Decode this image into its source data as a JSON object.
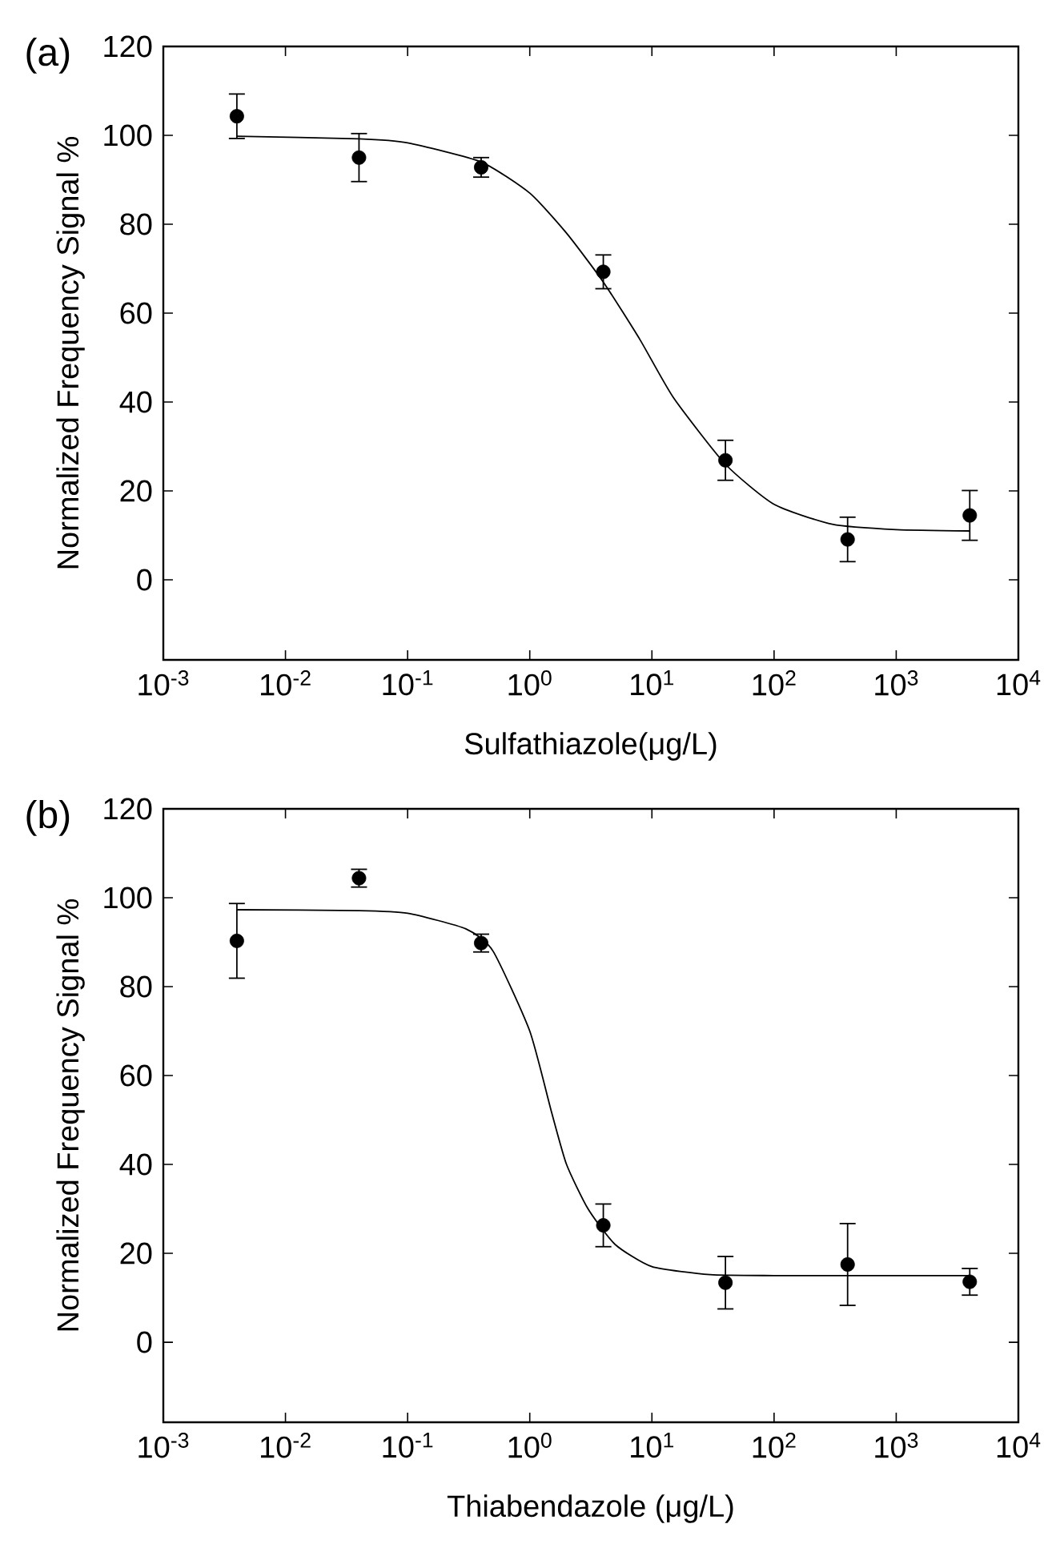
{
  "chart_data": [
    {
      "type": "scatter",
      "xlabel": "Sulfathiazole(μg/L)",
      "ylabel": "Normalized Frequency Signal %",
      "annotations": [
        "(a)"
      ],
      "log": "x",
      "grid": false,
      "marker": "circle",
      "xlim": [
        0.001,
        10000
      ],
      "ylim": [
        -18,
        120
      ],
      "xticks": [
        {
          "value": 0.001,
          "label": "10$^{-3}$"
        },
        {
          "value": 0.01,
          "label": "10$^{-2}$"
        },
        {
          "value": 0.1,
          "label": "10$^{-1}$"
        },
        {
          "value": 1,
          "label": "10$^{0}$"
        },
        {
          "value": 10,
          "label": "10$^{1}$"
        },
        {
          "value": 100,
          "label": "10$^{2}$"
        },
        {
          "value": 1000,
          "label": "10$^{3}$"
        },
        {
          "value": 10000,
          "label": "10$^{4}$"
        }
      ],
      "yticks": [
        0,
        20,
        40,
        60,
        80,
        100,
        120
      ],
      "series": [
        {
          "color": "#000000",
          "x": [
            0.004,
            0.04,
            0.4,
            4,
            40,
            400,
            4000
          ],
          "values": [
            104.3,
            95,
            92.8,
            69.3,
            26.9,
            9.1,
            14.5
          ],
          "errors": [
            5,
            5.4,
            2.2,
            3.8,
            4.5,
            5,
            5.6
          ]
        },
        {
          "type": "line",
          "marker": "none",
          "color": "#000000",
          "x": [
            0.004,
            0.04,
            0.1,
            0.4,
            1,
            2,
            4,
            8,
            15,
            40,
            100,
            300,
            1000,
            4000
          ],
          "values": [
            99.8,
            99.2,
            98.3,
            94,
            87,
            78,
            67,
            54,
            41,
            26,
            17,
            12.5,
            11.3,
            11
          ]
        }
      ]
    },
    {
      "type": "scatter",
      "xlabel": "Thiabendazole (μg/L)",
      "ylabel": "Normalized Frequency Signal %",
      "annotations": [
        "(b)"
      ],
      "log": "x",
      "grid": false,
      "marker": "circle",
      "xlim": [
        0.001,
        10000
      ],
      "ylim": [
        -18,
        120
      ],
      "xticks": [
        {
          "value": 0.001,
          "label": "10$^{-3}$"
        },
        {
          "value": 0.01,
          "label": "10$^{-2}$"
        },
        {
          "value": 0.1,
          "label": "10$^{-1}$"
        },
        {
          "value": 1,
          "label": "10$^{0}$"
        },
        {
          "value": 10,
          "label": "10$^{1}$"
        },
        {
          "value": 100,
          "label": "10$^{2}$"
        },
        {
          "value": 1000,
          "label": "10$^{3}$"
        },
        {
          "value": 10000,
          "label": "10$^{4}$"
        }
      ],
      "yticks": [
        0,
        20,
        40,
        60,
        80,
        100,
        120
      ],
      "series": [
        {
          "color": "#000000",
          "x": [
            0.004,
            0.04,
            0.4,
            4,
            40,
            400,
            4000
          ],
          "values": [
            90.3,
            104.4,
            89.8,
            26.3,
            13.4,
            17.5,
            13.6
          ],
          "errors": [
            8.4,
            2,
            2,
            4.8,
            5.9,
            9.2,
            3
          ]
        },
        {
          "type": "line",
          "marker": "none",
          "color": "#000000",
          "x": [
            0.004,
            0.04,
            0.1,
            0.3,
            0.5,
            1,
            1.5,
            2,
            3,
            5,
            10,
            30,
            100,
            4000
          ],
          "values": [
            97.3,
            97.1,
            96.5,
            93,
            88,
            70,
            52,
            40,
            30,
            22,
            17,
            15.2,
            15,
            15
          ]
        }
      ]
    }
  ]
}
